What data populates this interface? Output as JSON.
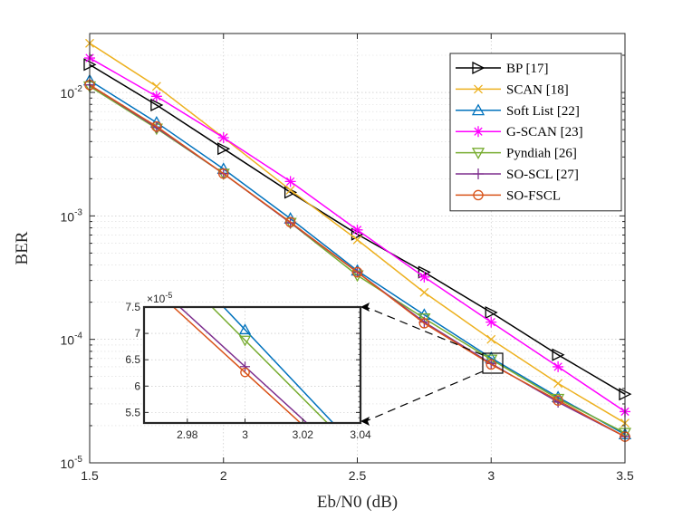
{
  "chart_data": {
    "type": "line",
    "title": "",
    "xlabel": "Eb/N0 (dB)",
    "ylabel": "BER",
    "x_scale": "linear",
    "y_scale": "log",
    "xlim": [
      1.5,
      3.5
    ],
    "ylim": [
      1e-05,
      0.03
    ],
    "grid": true,
    "minor_grid": true,
    "legend_position": "top-right",
    "x_ticks": [
      1.5,
      2,
      2.5,
      3,
      3.5
    ],
    "x_tick_labels": [
      "1.5",
      "2",
      "2.5",
      "3",
      "3.5"
    ],
    "y_ticks": [
      1e-05,
      0.0001,
      0.001,
      0.01
    ],
    "y_tick_bases": [
      "10",
      "10",
      "10",
      "10"
    ],
    "y_tick_exps": [
      "-5",
      "-4",
      "-3",
      "-2"
    ],
    "x": [
      1.5,
      1.75,
      2.0,
      2.25,
      2.5,
      2.75,
      3.0,
      3.25,
      3.5
    ],
    "series": [
      {
        "name": "BP [17]",
        "color": "#000000",
        "marker": "triangle-right",
        "values": [
          0.0168,
          0.0079,
          0.0035,
          0.00155,
          0.00071,
          0.00035,
          0.000165,
          7.5e-05,
          3.6e-05
        ]
      },
      {
        "name": "SCAN [18]",
        "color": "#edb120",
        "marker": "x",
        "values": [
          0.025,
          0.0112,
          0.0043,
          0.00162,
          0.00064,
          0.00024,
          0.0001,
          4.4e-05,
          2.1e-05
        ]
      },
      {
        "name": "Soft List [22]",
        "color": "#0072bd",
        "marker": "triangle-up",
        "values": [
          0.0125,
          0.0057,
          0.0024,
          0.00095,
          0.00036,
          0.000158,
          7.07e-05,
          3.4e-05,
          1.7e-05
        ]
      },
      {
        "name": "G-SCAN [23]",
        "color": "#ff00ff",
        "marker": "asterisk",
        "values": [
          0.019,
          0.0093,
          0.0043,
          0.0019,
          0.00077,
          0.00032,
          0.000138,
          6e-05,
          2.6e-05
        ]
      },
      {
        "name": "Pyndiah [26]",
        "color": "#77ac30",
        "marker": "triangle-down",
        "values": [
          0.0112,
          0.0051,
          0.0022,
          0.00088,
          0.00033,
          0.000148,
          6.87e-05,
          3.3e-05,
          1.75e-05
        ]
      },
      {
        "name": "SO-SCL [27]",
        "color": "#7e2f8e",
        "marker": "plus",
        "values": [
          0.0115,
          0.0052,
          0.0022,
          0.00088,
          0.00035,
          0.000138,
          6.37e-05,
          3.1e-05,
          1.63e-05
        ]
      },
      {
        "name": "SO-FSCL",
        "color": "#d95319",
        "marker": "circle",
        "values": [
          0.0115,
          0.0053,
          0.0022,
          0.00089,
          0.00035,
          0.000135,
          6.26e-05,
          3.2e-05,
          1.63e-05
        ]
      }
    ],
    "inset": {
      "xlim": [
        2.965,
        3.04
      ],
      "ylim": [
        5.3,
        7.5
      ],
      "x_ticks": [
        2.98,
        3,
        3.02,
        3.04
      ],
      "x_tick_labels": [
        "2.98",
        "3",
        "3.02",
        "3.04"
      ],
      "y_ticks": [
        5.5,
        6,
        6.5,
        7,
        7.5
      ],
      "y_tick_labels": [
        "5.5",
        "6",
        "6.5",
        "7",
        "7.5"
      ],
      "scale_label_base": "×10",
      "scale_label_exp": "-5",
      "points_at_x3": {
        "Soft List [22]": 7.07,
        "Pyndiah [26]": 6.87,
        "SO-SCL [27]": 6.37,
        "SO-FSCL": 6.26
      },
      "slopes_per_unit_x": {
        "Soft List [22]": -58,
        "Pyndiah [26]": -55,
        "SO-SCL [27]": -50,
        "SO-FSCL": -50
      }
    }
  }
}
